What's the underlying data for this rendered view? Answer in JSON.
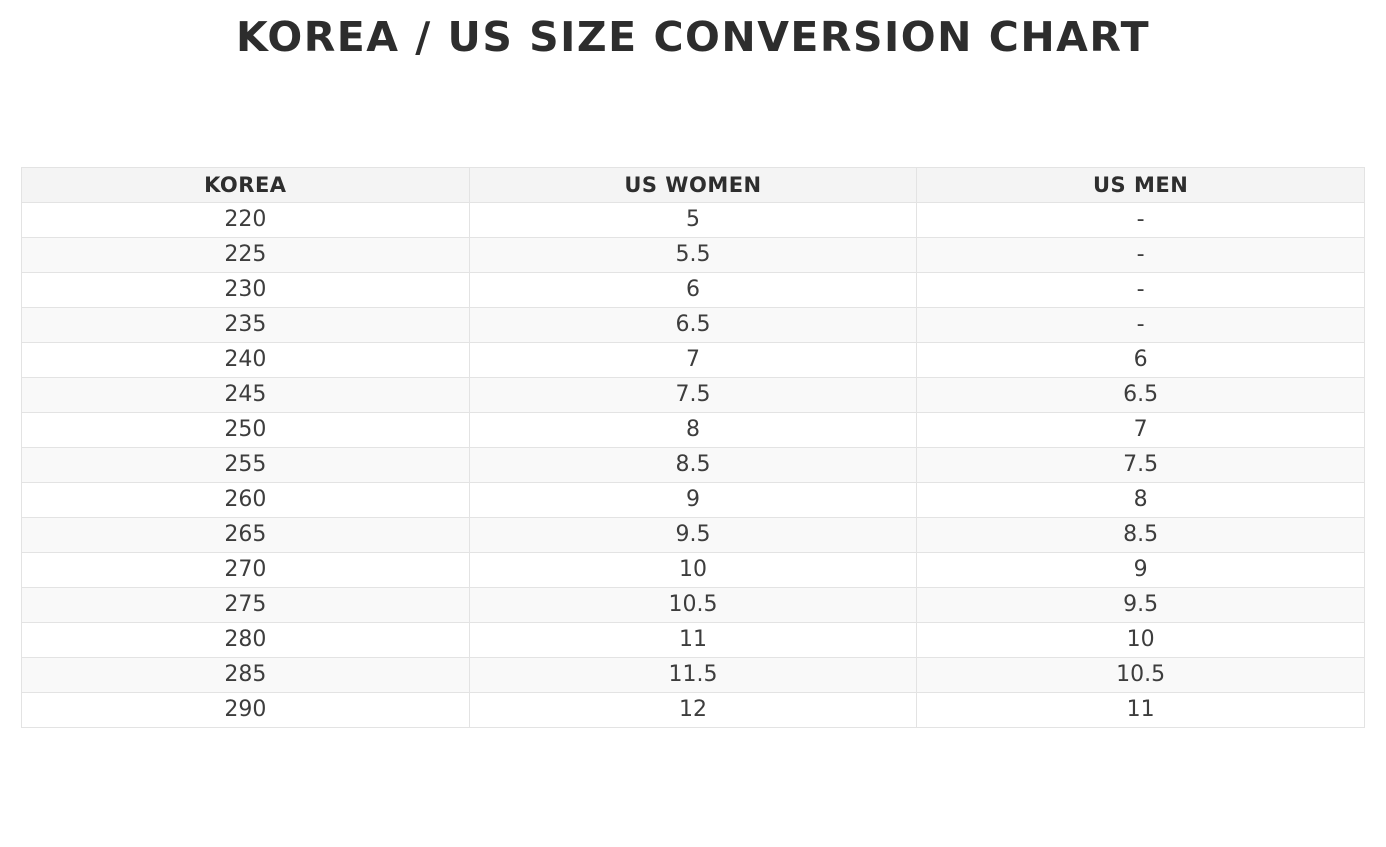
{
  "title": "KOREA / US SIZE CONVERSION CHART",
  "chart_data": {
    "type": "table",
    "title": "KOREA / US SIZE CONVERSION CHART",
    "columns": [
      "KOREA",
      "US WOMEN",
      "US MEN"
    ],
    "rows": [
      [
        "220",
        "5",
        "-"
      ],
      [
        "225",
        "5.5",
        "-"
      ],
      [
        "230",
        "6",
        "-"
      ],
      [
        "235",
        "6.5",
        "-"
      ],
      [
        "240",
        "7",
        "6"
      ],
      [
        "245",
        "7.5",
        "6.5"
      ],
      [
        "250",
        "8",
        "7"
      ],
      [
        "255",
        "8.5",
        "7.5"
      ],
      [
        "260",
        "9",
        "8"
      ],
      [
        "265",
        "9.5",
        "8.5"
      ],
      [
        "270",
        "10",
        "9"
      ],
      [
        "275",
        "10.5",
        "9.5"
      ],
      [
        "280",
        "11",
        "10"
      ],
      [
        "285",
        "11.5",
        "10.5"
      ],
      [
        "290",
        "12",
        "11"
      ]
    ],
    "layout": {
      "zebra_striping": true,
      "header_background": "#f4f4f4",
      "stripe_background": "#f9f9f9",
      "grid": true
    }
  },
  "colors": {
    "header_bg": "#f4f4f4",
    "stripe_bg": "#f9f9f9",
    "border": "#e3e3e3",
    "text": "#3d3d3d",
    "header_text": "#2e2e2e",
    "title_text": "#2d2d2d",
    "page_bg": "#ffffff"
  }
}
